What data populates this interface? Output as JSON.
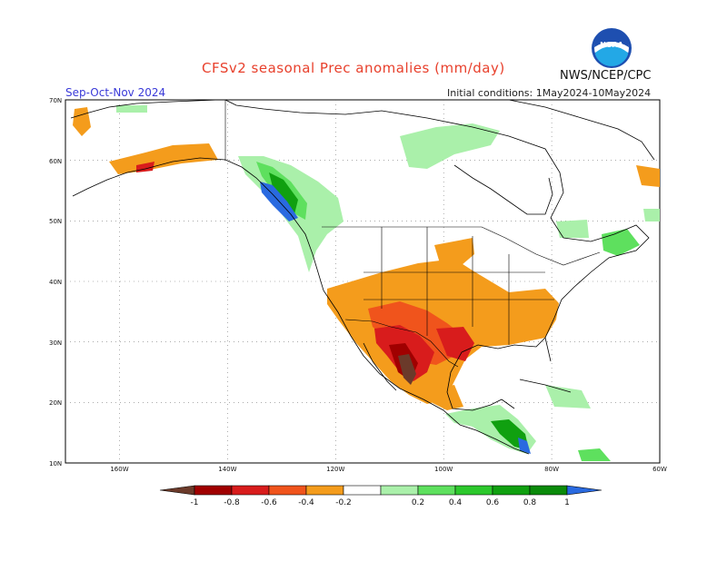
{
  "header": {
    "title": "CFSv2 seasonal Prec anomalies (mm/day)",
    "season": "Sep-Oct-Nov 2024",
    "initial_conditions": "Initial conditions:  1May2024-10May2024",
    "agency": "NWS/NCEP/CPC",
    "logo_text": "NOAA"
  },
  "map": {
    "lat_labels": [
      "70N",
      "60N",
      "50N",
      "40N",
      "30N",
      "20N",
      "10N"
    ],
    "lon_labels": [
      "160W",
      "140W",
      "120W",
      "100W",
      "80W",
      "60W"
    ]
  },
  "colorbar": {
    "labels": [
      "-1",
      "-0.8",
      "-0.6",
      "-0.4",
      "-0.2",
      "0.2",
      "0.4",
      "0.6",
      "0.8",
      "1"
    ],
    "colors": [
      "#6b3a2a",
      "#a00000",
      "#d81c1c",
      "#f0541c",
      "#f49c1c",
      "#ffffff",
      "#aaf0aa",
      "#5ee05e",
      "#2cc82c",
      "#10a010",
      "#0a8a0a",
      "#2a6ae0"
    ]
  },
  "colors": {
    "title": "#e8402c",
    "season": "#3a3ad8",
    "dry_strong": "#a00000",
    "dry": "#f49c1c",
    "wet": "#5ee05e",
    "wet_strong": "#2a6ae0"
  }
}
